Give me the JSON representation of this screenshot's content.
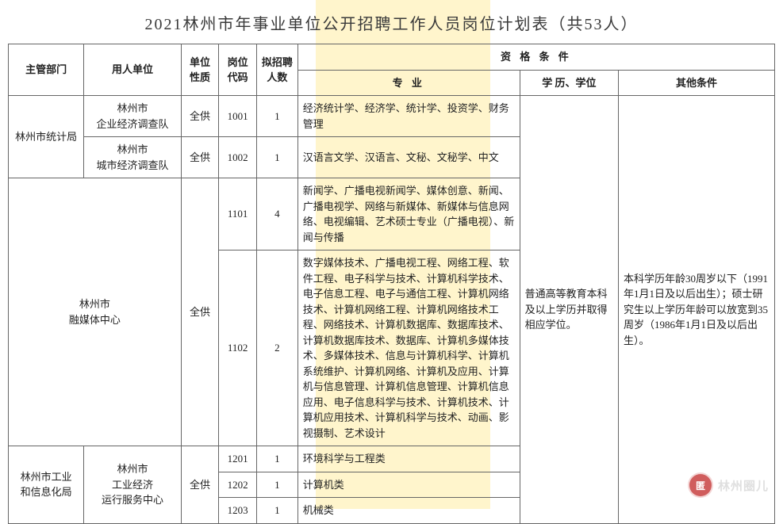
{
  "colors": {
    "highlight": "#fff5cc",
    "watermark_bg": "#c63a3a",
    "watermark_fg": "#ffffff",
    "watermark_text": "#d8d8d8"
  },
  "title": "2021林州市年事业单位公开招聘工作人员岗位计划表（共53人）",
  "headers": {
    "dept": "主管部门",
    "employer": "用人单位",
    "unit_type": "单位性质",
    "post_code": "岗位代码",
    "recruit_num": "拟招聘人数",
    "qualifications": "资 格 条 件",
    "major": "专 业",
    "education": "学 历、学位",
    "other": "其他条件"
  },
  "shared": {
    "education": "普通高等教育本科及以上学历并取得相应学位。",
    "other": "本科学历年龄30周岁以下（1991年1月1日及以后出生）；硕士研究生以上学历年龄可以放宽到35周岁（1986年1月1日及以后出生）。"
  },
  "rows": [
    {
      "dept": "林州市统计局",
      "employer": "林州市\n企业经济调查队",
      "unit_type": "全供",
      "post_code": "1001",
      "recruit_num": "1",
      "major": "经济统计学、经济学、统计学、投资学、财务管理"
    },
    {
      "employer": "林州市\n城市经济调查队",
      "unit_type": "全供",
      "post_code": "1002",
      "recruit_num": "1",
      "major": "汉语言文学、汉语言、文秘、文秘学、中文"
    },
    {
      "dept": "林州市\n融媒体中心",
      "unit_type": "全供",
      "post_code": "1101",
      "recruit_num": "4",
      "major": "新闻学、广播电视新闻学、媒体创意、新闻、广播电视学、网络与新媒体、新媒体与信息网络、电视编辑、艺术硕士专业（广播电视）、新闻与传播"
    },
    {
      "post_code": "1102",
      "recruit_num": "2",
      "major": "数字媒体技术、广播电视工程、网络工程、软件工程、电子科学与技术、计算机科学技术、电子信息工程、电子与通信工程、计算机网络技术、计算机网络工程、计算机网络技术工程、网络技术、计算机数据库、数据库技术、计算机数据库技术、数据库、计算机多媒体技术、多媒体技术、信息与计算机科学、计算机系统维护、计算机网络、计算机及应用、计算机与信息管理、计算机信息管理、计算机信息应用、电子信息科学与技术、计算机技术、计算机应用技术、计算机科学与技术、动画、影视摄制、艺术设计"
    },
    {
      "dept": "林州市工业\n和信息化局",
      "employer": "林州市\n工业经济\n运行服务中心",
      "unit_type": "全供",
      "post_code": "1201",
      "recruit_num": "1",
      "major": "环境科学与工程类"
    },
    {
      "post_code": "1202",
      "recruit_num": "1",
      "major": "计算机类"
    },
    {
      "post_code": "1203",
      "recruit_num": "1",
      "major": "机械类"
    }
  ],
  "watermark": {
    "logo_text": "匿",
    "label": "林州圈儿"
  }
}
